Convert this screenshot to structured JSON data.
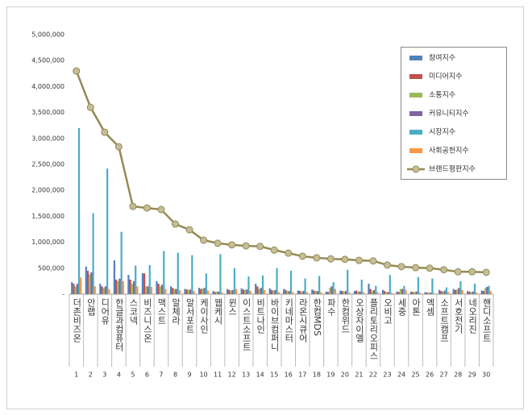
{
  "chart_data": {
    "type": "bar",
    "categories": [
      "더존비즈온",
      "안랩",
      "디어유",
      "한글과컴퓨터",
      "스코넥",
      "비즈니스온",
      "맥스트",
      "알체라",
      "알서포트",
      "케이사인",
      "웹케시",
      "윈스",
      "이스트소프트",
      "비트나인",
      "바이브컴퍼니",
      "키네마스터",
      "라온시큐어",
      "한컴MDS",
      "파수",
      "한컴위드",
      "오상자이엘",
      "플리토리오피스",
      "오비고",
      "세중",
      "아톤",
      "엑셈",
      "소프트캠프",
      "서호전기",
      "네오리진",
      "핸디소프트"
    ],
    "ranks": [
      1,
      2,
      3,
      4,
      5,
      6,
      7,
      8,
      9,
      10,
      11,
      12,
      13,
      14,
      15,
      16,
      17,
      18,
      19,
      20,
      21,
      22,
      23,
      24,
      25,
      26,
      27,
      28,
      29,
      30
    ],
    "ylim": [
      0,
      5000000
    ],
    "yticks": [
      {
        "value": 0,
        "label": "-"
      },
      {
        "value": 500000,
        "label": "500,000"
      },
      {
        "value": 1000000,
        "label": "1,000,000"
      },
      {
        "value": 1500000,
        "label": "1,500,000"
      },
      {
        "value": 2000000,
        "label": "2,000,000"
      },
      {
        "value": 2500000,
        "label": "2,500,000"
      },
      {
        "value": 3000000,
        "label": "3,000,000"
      },
      {
        "value": 3500000,
        "label": "3,500,000"
      },
      {
        "value": 4000000,
        "label": "4,000,000"
      },
      {
        "value": 4500000,
        "label": "4,500,000"
      },
      {
        "value": 5000000,
        "label": "5,000,000"
      }
    ],
    "legend": "top-right",
    "series": [
      {
        "name": "참여지수",
        "color": "#4f81bd",
        "values": [
          230000,
          530000,
          200000,
          650000,
          370000,
          400000,
          250000,
          150000,
          100000,
          120000,
          60000,
          100000,
          110000,
          200000,
          110000,
          100000,
          70000,
          90000,
          50000,
          70000,
          60000,
          200000,
          80000,
          50000,
          50000,
          40000,
          80000,
          100000,
          60000,
          70000
        ]
      },
      {
        "name": "미디어지수",
        "color": "#c0504d",
        "values": [
          200000,
          450000,
          150000,
          280000,
          280000,
          400000,
          200000,
          120000,
          90000,
          100000,
          40000,
          80000,
          90000,
          150000,
          80000,
          80000,
          60000,
          70000,
          40000,
          60000,
          70000,
          100000,
          60000,
          40000,
          40000,
          30000,
          60000,
          80000,
          50000,
          60000
        ]
      },
      {
        "name": "소통지수",
        "color": "#9bbb59",
        "values": [
          150000,
          380000,
          120000,
          250000,
          200000,
          150000,
          150000,
          100000,
          80000,
          110000,
          50000,
          70000,
          80000,
          100000,
          70000,
          60000,
          50000,
          60000,
          120000,
          50000,
          50000,
          60000,
          40000,
          100000,
          40000,
          30000,
          50000,
          90000,
          40000,
          120000
        ]
      },
      {
        "name": "커뮤니티지수",
        "color": "#8064a2",
        "values": [
          200000,
          420000,
          150000,
          300000,
          250000,
          150000,
          180000,
          100000,
          90000,
          120000,
          50000,
          80000,
          90000,
          120000,
          80000,
          60000,
          60000,
          60000,
          150000,
          60000,
          50000,
          80000,
          40000,
          100000,
          50000,
          30000,
          70000,
          120000,
          50000,
          140000
        ]
      },
      {
        "name": "시장지수",
        "color": "#4bacc6",
        "values": [
          3200000,
          1560000,
          2420000,
          1200000,
          550000,
          560000,
          830000,
          800000,
          750000,
          400000,
          770000,
          500000,
          340000,
          360000,
          500000,
          450000,
          300000,
          350000,
          230000,
          470000,
          280000,
          160000,
          370000,
          160000,
          330000,
          300000,
          130000,
          250000,
          200000,
          160000
        ]
      },
      {
        "name": "사회공헌지수",
        "color": "#f79646",
        "values": [
          320000,
          150000,
          100000,
          250000,
          150000,
          140000,
          100000,
          80000,
          60000,
          70000,
          30000,
          100000,
          60000,
          80000,
          40000,
          40000,
          40000,
          40000,
          100000,
          30000,
          40000,
          40000,
          30000,
          80000,
          30000,
          20000,
          40000,
          80000,
          30000,
          60000
        ]
      },
      {
        "name": "브랜드평판지수",
        "color": "#948a54",
        "type": "line",
        "values": [
          4300000,
          3600000,
          3120000,
          2840000,
          1690000,
          1660000,
          1630000,
          1350000,
          1240000,
          1040000,
          980000,
          950000,
          930000,
          920000,
          850000,
          790000,
          730000,
          700000,
          680000,
          670000,
          650000,
          640000,
          560000,
          530000,
          510000,
          500000,
          470000,
          430000,
          430000,
          420000
        ]
      }
    ]
  }
}
